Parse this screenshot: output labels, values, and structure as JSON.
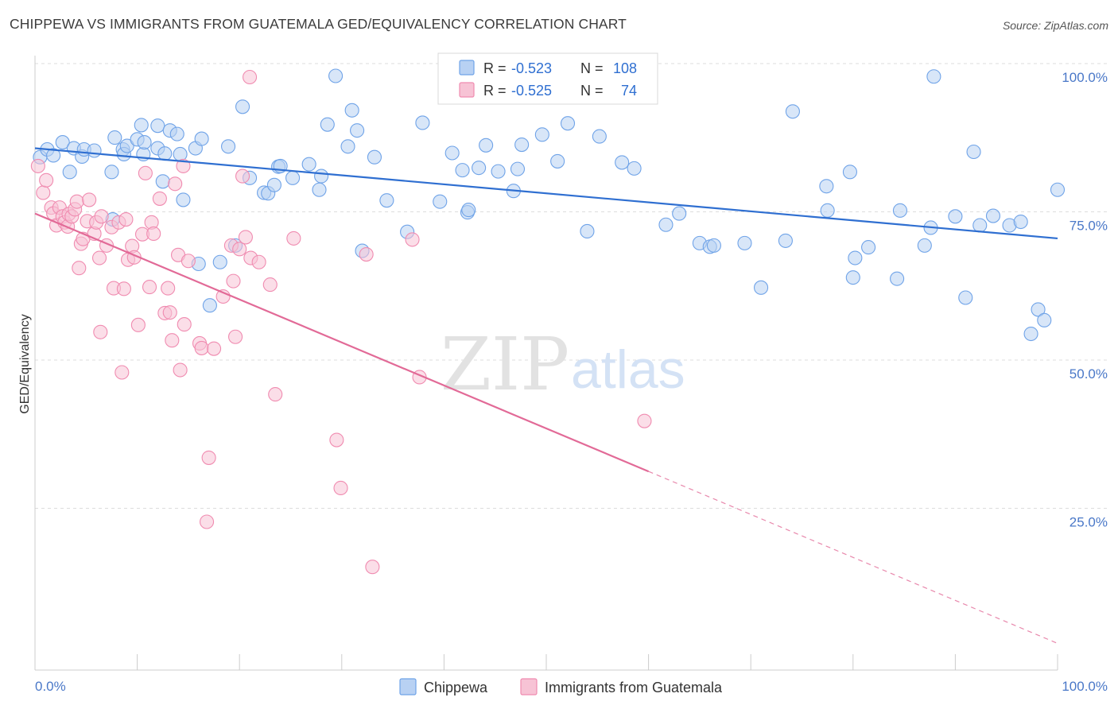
{
  "title": "CHIPPEWA VS IMMIGRANTS FROM GUATEMALA GED/EQUIVALENCY CORRELATION CHART",
  "source": "Source: ZipAtlas.com",
  "watermark": {
    "zip": "ZIP",
    "atlas": "atlas"
  },
  "chart_data": {
    "type": "scatter",
    "ylabel": "GED/Equivalency",
    "xlim": [
      0,
      100
    ],
    "ylim": [
      0,
      102
    ],
    "x_tick_labels": [
      "0.0%",
      "100.0%"
    ],
    "y_ticks": [
      {
        "value": 100,
        "label": "100.0%"
      },
      {
        "value": 75,
        "label": "75.0%"
      },
      {
        "value": 50,
        "label": "50.0%"
      },
      {
        "value": 25,
        "label": "25.0%"
      }
    ],
    "grid": true,
    "legend_position": "top-center",
    "series": [
      {
        "name": "Chippewa",
        "color": "#6fa3e8",
        "fill": "#b8d1f3",
        "line_color": "#2f6fd1",
        "r_label": "R =",
        "r_value": "-0.523",
        "n_label": "N =",
        "n_value": "108",
        "trend": {
          "x0": 0,
          "y0": 88.0,
          "x1": 100,
          "y1": 72.8
        },
        "points": [
          [
            0.5,
            86.5
          ],
          [
            1.2,
            87.8
          ],
          [
            1.8,
            86.8
          ],
          [
            2.7,
            89.0
          ],
          [
            3.4,
            84.0
          ],
          [
            3.8,
            88.0
          ],
          [
            4.6,
            86.6
          ],
          [
            4.8,
            87.8
          ],
          [
            5.8,
            87.6
          ],
          [
            7.5,
            84.0
          ],
          [
            7.6,
            76.0
          ],
          [
            7.8,
            89.8
          ],
          [
            8.6,
            87.8
          ],
          [
            8.7,
            87.0
          ],
          [
            9.0,
            88.4
          ],
          [
            10.0,
            89.5
          ],
          [
            10.4,
            91.9
          ],
          [
            10.6,
            87.0
          ],
          [
            10.7,
            89.0
          ],
          [
            12.0,
            88.0
          ],
          [
            12.5,
            82.4
          ],
          [
            12.0,
            91.8
          ],
          [
            12.7,
            87.1
          ],
          [
            13.2,
            91.0
          ],
          [
            13.9,
            90.4
          ],
          [
            14.2,
            87.0
          ],
          [
            14.5,
            79.3
          ],
          [
            15.7,
            88.0
          ],
          [
            16.3,
            89.6
          ],
          [
            16.0,
            68.5
          ],
          [
            17.1,
            61.5
          ],
          [
            18.1,
            68.8
          ],
          [
            18.9,
            88.3
          ],
          [
            19.6,
            71.6
          ],
          [
            20.3,
            95.0
          ],
          [
            21.0,
            83.0
          ],
          [
            22.4,
            80.5
          ],
          [
            22.8,
            80.4
          ],
          [
            23.4,
            81.8
          ],
          [
            23.8,
            84.9
          ],
          [
            24.0,
            85.0
          ],
          [
            25.2,
            83.0
          ],
          [
            26.8,
            85.3
          ],
          [
            27.8,
            81.0
          ],
          [
            28.0,
            83.3
          ],
          [
            28.6,
            92.0
          ],
          [
            29.4,
            100.2
          ],
          [
            30.6,
            88.3
          ],
          [
            31.0,
            94.4
          ],
          [
            31.5,
            91.0
          ],
          [
            32.0,
            70.7
          ],
          [
            33.2,
            86.5
          ],
          [
            34.4,
            79.2
          ],
          [
            36.4,
            73.9
          ],
          [
            37.9,
            92.3
          ],
          [
            39.6,
            79.0
          ],
          [
            40.8,
            87.2
          ],
          [
            41.8,
            84.3
          ],
          [
            42.3,
            77.2
          ],
          [
            42.4,
            77.6
          ],
          [
            43.4,
            84.7
          ],
          [
            44.1,
            88.5
          ],
          [
            45.3,
            84.1
          ],
          [
            46.8,
            80.8
          ],
          [
            47.2,
            84.5
          ],
          [
            47.6,
            88.6
          ],
          [
            49.6,
            90.3
          ],
          [
            51.1,
            85.8
          ],
          [
            52.1,
            92.2
          ],
          [
            54.0,
            74.0
          ],
          [
            55.2,
            90.0
          ],
          [
            57.4,
            85.6
          ],
          [
            58.6,
            84.6
          ],
          [
            61.7,
            75.1
          ],
          [
            63.0,
            77.0
          ],
          [
            65.0,
            72.0
          ],
          [
            66.0,
            71.4
          ],
          [
            66.4,
            71.6
          ],
          [
            69.4,
            72.0
          ],
          [
            71.0,
            64.5
          ],
          [
            73.4,
            72.4
          ],
          [
            74.1,
            94.2
          ],
          [
            77.4,
            81.6
          ],
          [
            77.5,
            77.5
          ],
          [
            79.7,
            84.0
          ],
          [
            80.0,
            66.2
          ],
          [
            80.2,
            69.5
          ],
          [
            81.5,
            71.3
          ],
          [
            84.3,
            66.0
          ],
          [
            84.6,
            77.5
          ],
          [
            87.0,
            71.6
          ],
          [
            87.6,
            74.6
          ],
          [
            87.9,
            100.1
          ],
          [
            90.0,
            76.5
          ],
          [
            91.0,
            62.8
          ],
          [
            91.8,
            87.4
          ],
          [
            92.4,
            75.0
          ],
          [
            93.7,
            76.6
          ],
          [
            95.3,
            75.0
          ],
          [
            96.4,
            75.6
          ],
          [
            97.4,
            56.7
          ],
          [
            98.1,
            60.8
          ],
          [
            98.7,
            59.0
          ],
          [
            100.0,
            81.0
          ]
        ]
      },
      {
        "name": "Immigrants from Guatemala",
        "color": "#f08bb0",
        "fill": "#f7c3d5",
        "line_color": "#e26a97",
        "r_label": "R =",
        "r_value": "-0.525",
        "n_label": "N =",
        "n_value": "74",
        "trend": {
          "x0": 0,
          "y0": 77.0,
          "x1": 100,
          "y1": 4.5,
          "solid_until": 60
        },
        "points": [
          [
            0.3,
            85.0
          ],
          [
            0.8,
            80.5
          ],
          [
            1.1,
            82.6
          ],
          [
            1.6,
            78.0
          ],
          [
            1.8,
            77.0
          ],
          [
            2.1,
            75.0
          ],
          [
            2.4,
            78.0
          ],
          [
            2.7,
            76.5
          ],
          [
            2.9,
            75.5
          ],
          [
            3.2,
            74.8
          ],
          [
            3.3,
            76.9
          ],
          [
            3.6,
            76.5
          ],
          [
            3.9,
            77.7
          ],
          [
            4.1,
            79.0
          ],
          [
            4.3,
            67.8
          ],
          [
            4.5,
            71.9
          ],
          [
            4.7,
            72.7
          ],
          [
            5.1,
            75.7
          ],
          [
            5.3,
            79.3
          ],
          [
            5.8,
            73.6
          ],
          [
            6.0,
            75.5
          ],
          [
            6.3,
            69.5
          ],
          [
            6.4,
            57.0
          ],
          [
            6.5,
            76.5
          ],
          [
            7.0,
            71.6
          ],
          [
            7.5,
            74.7
          ],
          [
            7.7,
            64.4
          ],
          [
            8.2,
            75.5
          ],
          [
            8.5,
            50.2
          ],
          [
            8.7,
            64.3
          ],
          [
            8.9,
            76.0
          ],
          [
            9.1,
            69.2
          ],
          [
            9.5,
            71.5
          ],
          [
            9.7,
            69.6
          ],
          [
            10.1,
            58.2
          ],
          [
            10.5,
            73.5
          ],
          [
            10.8,
            83.8
          ],
          [
            11.2,
            64.6
          ],
          [
            11.4,
            75.5
          ],
          [
            11.6,
            73.6
          ],
          [
            12.2,
            79.5
          ],
          [
            12.7,
            60.2
          ],
          [
            13.0,
            64.4
          ],
          [
            13.2,
            60.3
          ],
          [
            13.4,
            55.6
          ],
          [
            13.7,
            82.0
          ],
          [
            14.0,
            70.0
          ],
          [
            14.2,
            50.6
          ],
          [
            14.5,
            85.0
          ],
          [
            14.6,
            58.3
          ],
          [
            15.0,
            69.0
          ],
          [
            16.1,
            55.1
          ],
          [
            16.3,
            54.3
          ],
          [
            16.8,
            25.0
          ],
          [
            17.0,
            35.8
          ],
          [
            17.5,
            54.2
          ],
          [
            18.4,
            63.0
          ],
          [
            19.2,
            71.6
          ],
          [
            19.4,
            65.6
          ],
          [
            19.6,
            56.2
          ],
          [
            20.0,
            71.0
          ],
          [
            20.3,
            83.3
          ],
          [
            20.6,
            73.0
          ],
          [
            21.1,
            69.5
          ],
          [
            21.9,
            68.8
          ],
          [
            23.0,
            65.0
          ],
          [
            23.5,
            46.5
          ],
          [
            25.3,
            72.8
          ],
          [
            29.5,
            38.8
          ],
          [
            29.9,
            30.7
          ],
          [
            32.4,
            70.1
          ],
          [
            33.0,
            17.4
          ],
          [
            36.9,
            72.6
          ],
          [
            37.6,
            49.4
          ],
          [
            59.6,
            42.0
          ],
          [
            21.0,
            100.0
          ]
        ]
      }
    ]
  }
}
